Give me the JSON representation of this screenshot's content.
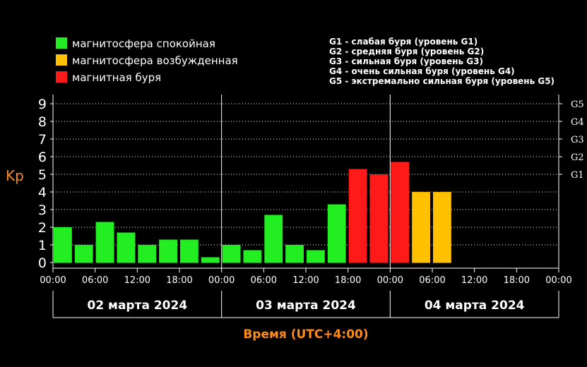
{
  "legend": {
    "items": [
      {
        "label": "магнитосфера спокойная",
        "color": "#22ee22"
      },
      {
        "label": "магнитосфера возбужденная",
        "color": "#ffc000"
      },
      {
        "label": "магнитная буря",
        "color": "#ff1a1a"
      }
    ],
    "storm_levels": [
      "G1 - слабая буря (уровень G1)",
      "G2 - средняя буря (уровень G2)",
      "G3 - сильная буря (уровень G3)",
      "G4 - очень сильная буря (уровень G4)",
      "G5 - экстремально сильная буря (уровень G5)"
    ]
  },
  "chart_data": {
    "type": "bar",
    "ylabel": "Kp",
    "xlabel": "Время (UTC+4:00)",
    "ylim": [
      0,
      9
    ],
    "yticks": [
      "0",
      "1",
      "2",
      "3",
      "4",
      "5",
      "6",
      "7",
      "8",
      "9"
    ],
    "g_ticks": [
      {
        "label": "G1",
        "kp": 5
      },
      {
        "label": "G2",
        "kp": 6
      },
      {
        "label": "G3",
        "kp": 7
      },
      {
        "label": "G4",
        "kp": 8
      },
      {
        "label": "G5",
        "kp": 9
      }
    ],
    "xticks": [
      "00:00",
      "06:00",
      "12:00",
      "18:00",
      "00:00",
      "06:00",
      "12:00",
      "18:00",
      "00:00",
      "06:00",
      "12:00",
      "18:00",
      "00:00"
    ],
    "days": [
      "02 марта 2024",
      "03 марта 2024",
      "04 марта 2024"
    ],
    "interval_hours": 3,
    "values": [
      2.0,
      1.0,
      2.3,
      1.7,
      1.0,
      1.3,
      1.3,
      0.3,
      1.0,
      0.7,
      2.7,
      1.0,
      0.7,
      3.3,
      5.3,
      5.0,
      5.7,
      4.0,
      4.0
    ],
    "status": [
      "quiet",
      "quiet",
      "quiet",
      "quiet",
      "quiet",
      "quiet",
      "quiet",
      "quiet",
      "quiet",
      "quiet",
      "quiet",
      "quiet",
      "quiet",
      "quiet",
      "storm",
      "storm",
      "storm",
      "active",
      "active"
    ],
    "colors": {
      "quiet": "#22ee22",
      "active": "#ffc000",
      "storm": "#ff1a1a"
    },
    "grid": "dotted horizontal at each Kp level, solid vertical day separators"
  }
}
